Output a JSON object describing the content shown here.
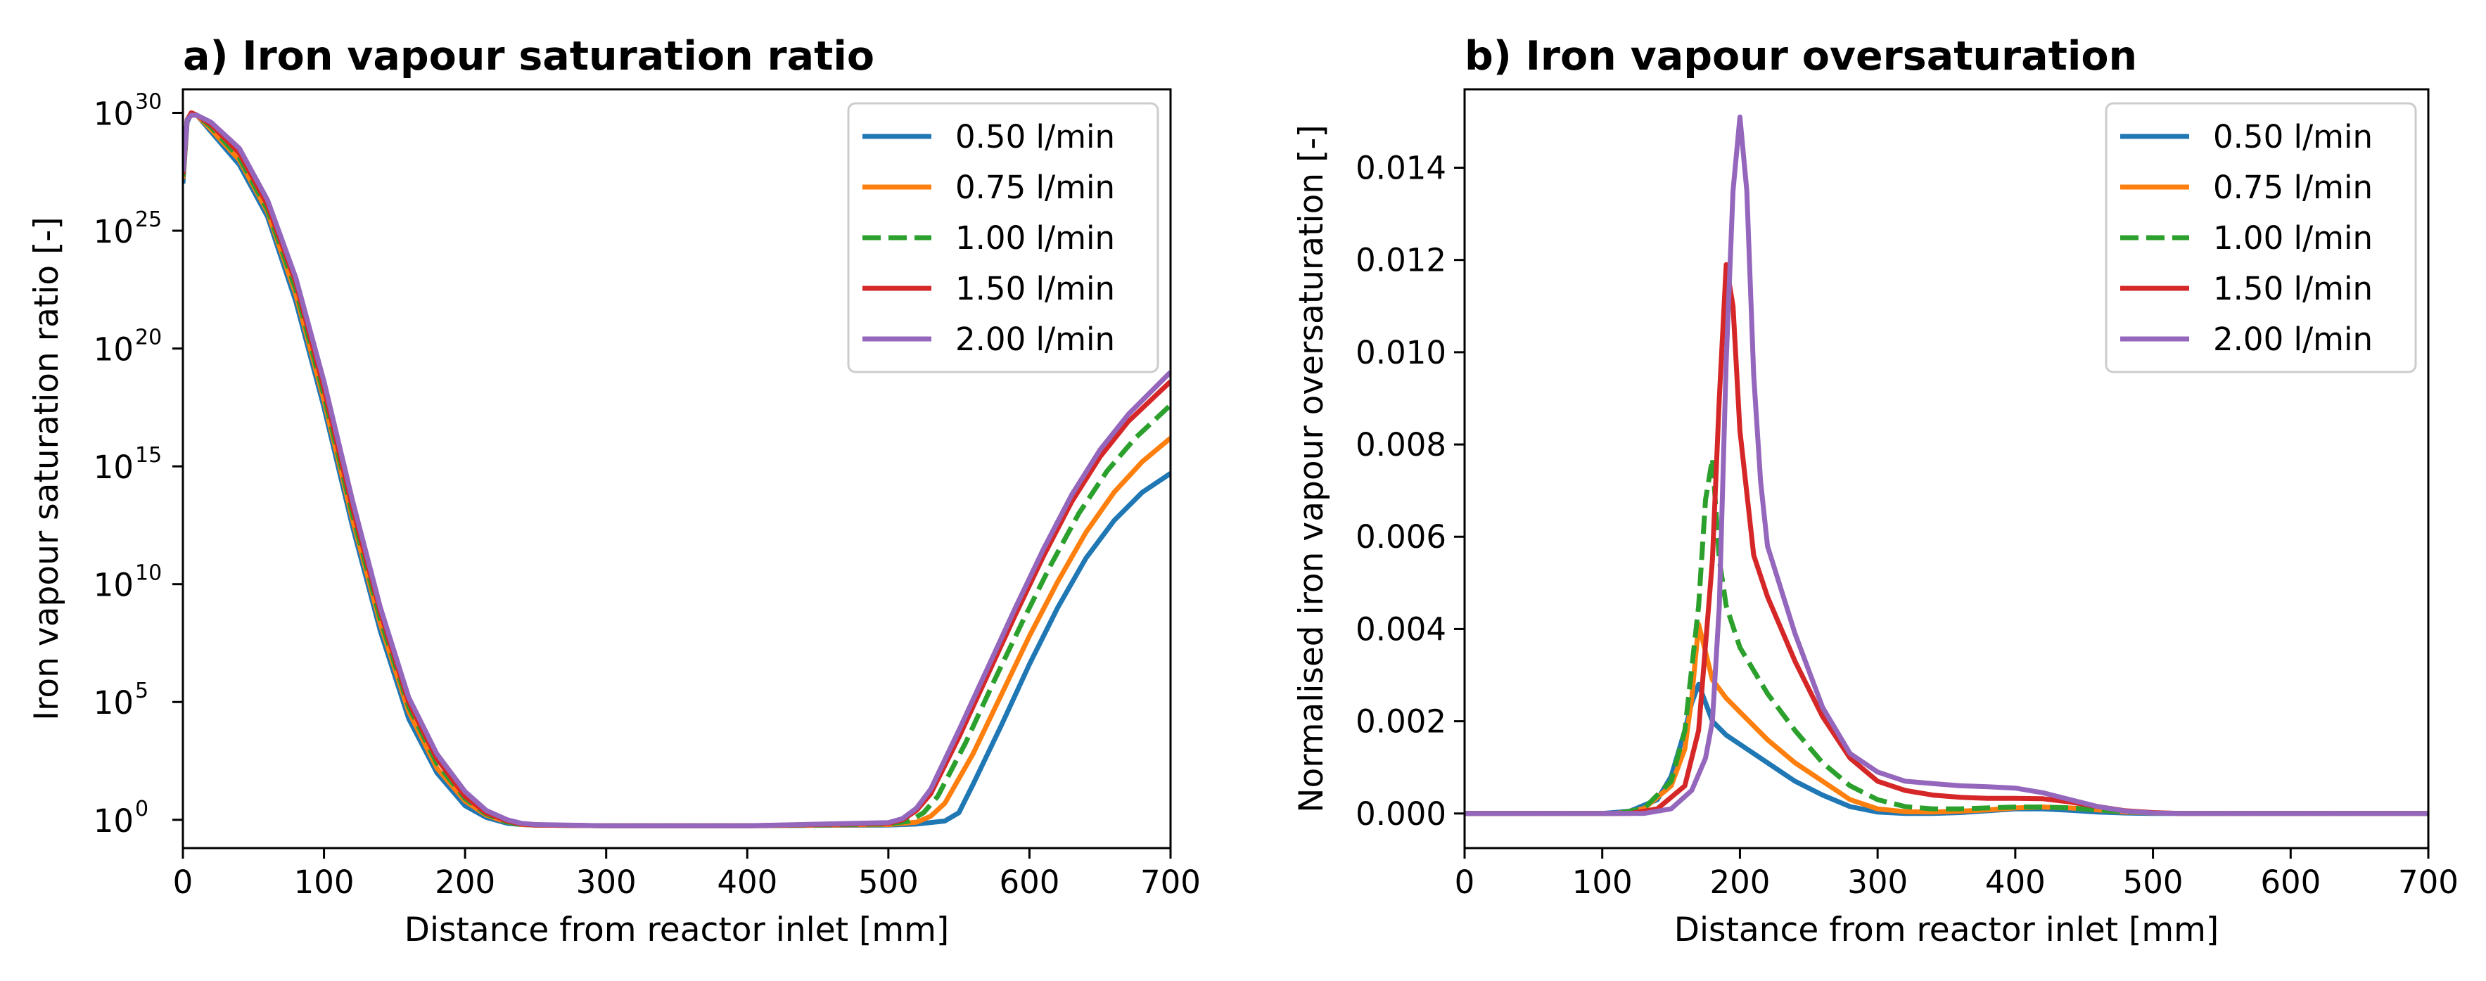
{
  "chart_data": [
    {
      "type": "line",
      "panel": "a",
      "title": "a) Iron vapour saturation ratio",
      "xlabel": "Distance from reactor inlet [mm]",
      "ylabel": "Iron vapour saturation ratio [-]",
      "yscale": "log",
      "xlim": [
        0,
        700
      ],
      "ylim_exp": [
        -1.2,
        31
      ],
      "x_ticks": [
        0,
        100,
        200,
        300,
        400,
        500,
        600,
        700
      ],
      "x_tick_labels": [
        "0",
        "100",
        "200",
        "300",
        "400",
        "500",
        "600",
        "700"
      ],
      "y_ticks_exp": [
        0,
        5,
        10,
        15,
        20,
        25,
        30
      ],
      "y_tick_base": "10",
      "y_tick_exponents": [
        "0",
        "5",
        "10",
        "15",
        "20",
        "25",
        "30"
      ],
      "legend_position": "top-right",
      "series": [
        {
          "name": "0.50 l/min",
          "color": "#1f77b4",
          "dash": "solid",
          "x": [
            0,
            3,
            6,
            10,
            20,
            40,
            60,
            80,
            100,
            120,
            140,
            160,
            180,
            200,
            215,
            230,
            240,
            250,
            300,
            400,
            500,
            520,
            540,
            550,
            560,
            580,
            600,
            620,
            640,
            660,
            680,
            700
          ],
          "y_exp": [
            27.0,
            29.6,
            30.0,
            29.9,
            29.2,
            27.8,
            25.6,
            22.0,
            17.5,
            12.5,
            8.0,
            4.3,
            2.0,
            0.6,
            0.1,
            -0.15,
            -0.2,
            -0.22,
            -0.25,
            -0.25,
            -0.22,
            -0.18,
            -0.05,
            0.3,
            1.5,
            4.0,
            6.6,
            9.0,
            11.1,
            12.7,
            13.9,
            14.7
          ]
        },
        {
          "name": "0.75 l/min",
          "color": "#ff7f0e",
          "dash": "solid",
          "x": [
            0,
            3,
            6,
            10,
            20,
            40,
            60,
            80,
            100,
            120,
            140,
            160,
            180,
            200,
            215,
            230,
            240,
            250,
            300,
            400,
            500,
            520,
            530,
            540,
            560,
            580,
            600,
            620,
            640,
            660,
            680,
            700
          ],
          "y_exp": [
            27.2,
            29.7,
            30.0,
            29.9,
            29.3,
            28.0,
            25.8,
            22.3,
            17.8,
            12.8,
            8.3,
            4.6,
            2.2,
            0.8,
            0.2,
            -0.1,
            -0.2,
            -0.22,
            -0.25,
            -0.25,
            -0.2,
            -0.1,
            0.15,
            0.7,
            2.8,
            5.3,
            7.8,
            10.1,
            12.2,
            13.9,
            15.2,
            16.2
          ]
        },
        {
          "name": "1.00 l/min",
          "color": "#2ca02c",
          "dash": "dashed",
          "x": [
            0,
            3,
            6,
            10,
            20,
            40,
            60,
            80,
            100,
            120,
            140,
            160,
            180,
            200,
            215,
            230,
            240,
            250,
            300,
            400,
            500,
            515,
            525,
            535,
            555,
            575,
            595,
            615,
            635,
            655,
            675,
            700
          ],
          "y_exp": [
            27.3,
            29.7,
            30.0,
            29.9,
            29.4,
            28.1,
            25.9,
            22.5,
            18.0,
            13.0,
            8.5,
            4.8,
            2.4,
            0.9,
            0.25,
            -0.1,
            -0.2,
            -0.22,
            -0.25,
            -0.25,
            -0.18,
            -0.05,
            0.3,
            1.0,
            3.3,
            5.9,
            8.4,
            10.8,
            13.0,
            14.8,
            16.2,
            17.6
          ]
        },
        {
          "name": "1.50 l/min",
          "color": "#d62728",
          "dash": "solid",
          "x": [
            0,
            3,
            6,
            10,
            20,
            40,
            60,
            80,
            100,
            120,
            140,
            160,
            180,
            200,
            215,
            230,
            240,
            250,
            300,
            400,
            500,
            510,
            520,
            530,
            550,
            570,
            590,
            610,
            630,
            650,
            670,
            700
          ],
          "y_exp": [
            27.4,
            29.7,
            30.0,
            29.9,
            29.5,
            28.3,
            26.1,
            22.8,
            18.3,
            13.3,
            8.8,
            5.0,
            2.6,
            1.0,
            0.3,
            -0.05,
            -0.18,
            -0.22,
            -0.25,
            -0.25,
            -0.15,
            0.0,
            0.4,
            1.1,
            3.5,
            6.1,
            8.7,
            11.2,
            13.5,
            15.4,
            16.9,
            18.6
          ]
        },
        {
          "name": "2.00 l/min",
          "color": "#9467bd",
          "dash": "solid",
          "x": [
            0,
            3,
            6,
            10,
            20,
            40,
            60,
            80,
            100,
            120,
            140,
            160,
            180,
            200,
            215,
            230,
            240,
            250,
            300,
            400,
            500,
            510,
            520,
            530,
            550,
            570,
            590,
            610,
            630,
            650,
            670,
            700
          ],
          "y_exp": [
            27.5,
            29.7,
            29.9,
            29.9,
            29.6,
            28.5,
            26.3,
            23.0,
            18.6,
            13.6,
            9.0,
            5.2,
            2.8,
            1.2,
            0.4,
            0.0,
            -0.15,
            -0.2,
            -0.25,
            -0.25,
            -0.12,
            0.05,
            0.5,
            1.3,
            3.8,
            6.4,
            9.0,
            11.5,
            13.8,
            15.7,
            17.2,
            19.0
          ]
        }
      ]
    },
    {
      "type": "line",
      "panel": "b",
      "title": "b) Iron vapour oversaturation",
      "xlabel": "Distance from reactor inlet [mm]",
      "ylabel": "Normalised iron vapour oversaturation [-]",
      "yscale": "linear",
      "xlim": [
        0,
        700
      ],
      "ylim": [
        -0.00075,
        0.0157
      ],
      "x_ticks": [
        0,
        100,
        200,
        300,
        400,
        500,
        600,
        700
      ],
      "x_tick_labels": [
        "0",
        "100",
        "200",
        "300",
        "400",
        "500",
        "600",
        "700"
      ],
      "y_ticks": [
        0.0,
        0.002,
        0.004,
        0.006,
        0.008,
        0.01,
        0.012,
        0.014
      ],
      "y_tick_labels": [
        "0.000",
        "0.002",
        "0.004",
        "0.006",
        "0.008",
        "0.010",
        "0.012",
        "0.014"
      ],
      "legend_position": "top-right",
      "series": [
        {
          "name": "0.50 l/min",
          "color": "#1f77b4",
          "dash": "solid",
          "x": [
            0,
            100,
            120,
            140,
            150,
            160,
            165,
            170,
            175,
            180,
            190,
            200,
            220,
            240,
            260,
            280,
            300,
            320,
            340,
            360,
            380,
            400,
            420,
            440,
            460,
            480,
            500,
            520,
            700
          ],
          "y": [
            0,
            0,
            5e-05,
            0.0003,
            0.0008,
            0.0018,
            0.0024,
            0.0028,
            0.0024,
            0.002,
            0.0017,
            0.0015,
            0.0011,
            0.0007,
            0.0004,
            0.00015,
            3e-05,
            0.0,
            0.0,
            2e-05,
            6e-05,
            0.0001,
            0.0001,
            7e-05,
            3e-05,
            1e-05,
            0,
            0,
            0
          ]
        },
        {
          "name": "0.75 l/min",
          "color": "#ff7f0e",
          "dash": "solid",
          "x": [
            0,
            110,
            130,
            150,
            160,
            165,
            170,
            175,
            180,
            190,
            200,
            220,
            240,
            260,
            280,
            300,
            320,
            340,
            360,
            380,
            400,
            420,
            440,
            460,
            480,
            500,
            520,
            700
          ],
          "y": [
            0,
            0,
            0.0001,
            0.0006,
            0.0014,
            0.0025,
            0.0041,
            0.0035,
            0.0029,
            0.0025,
            0.0022,
            0.0016,
            0.0011,
            0.0007,
            0.0003,
            0.0001,
            4e-05,
            3e-05,
            5e-05,
            8e-05,
            0.00012,
            0.00014,
            0.00012,
            8e-05,
            3e-05,
            1e-05,
            0,
            0
          ]
        },
        {
          "name": "1.00 l/min",
          "color": "#2ca02c",
          "dash": "dashed",
          "x": [
            0,
            110,
            130,
            150,
            160,
            170,
            175,
            180,
            185,
            190,
            200,
            220,
            240,
            260,
            280,
            300,
            320,
            340,
            360,
            380,
            400,
            420,
            440,
            460,
            480,
            500,
            520,
            700
          ],
          "y": [
            0,
            0,
            0.0001,
            0.0007,
            0.0018,
            0.0045,
            0.0068,
            0.0077,
            0.0055,
            0.0045,
            0.0036,
            0.0026,
            0.0018,
            0.0011,
            0.0006,
            0.0003,
            0.00015,
            0.0001,
            0.0001,
            0.00012,
            0.00014,
            0.00014,
            0.00012,
            8e-05,
            4e-05,
            1e-05,
            0,
            0
          ]
        },
        {
          "name": "1.50 l/min",
          "color": "#d62728",
          "dash": "solid",
          "x": [
            0,
            120,
            140,
            160,
            170,
            180,
            185,
            190,
            195,
            200,
            210,
            220,
            240,
            260,
            280,
            300,
            320,
            340,
            360,
            380,
            400,
            420,
            440,
            460,
            480,
            500,
            520,
            700
          ],
          "y": [
            0,
            0,
            0.0001,
            0.0006,
            0.0018,
            0.0055,
            0.009,
            0.0119,
            0.011,
            0.0083,
            0.0056,
            0.0047,
            0.0033,
            0.0021,
            0.0012,
            0.0007,
            0.0005,
            0.0004,
            0.00035,
            0.00033,
            0.00033,
            0.00032,
            0.00025,
            0.00015,
            6e-05,
            2e-05,
            0,
            0
          ]
        },
        {
          "name": "2.00 l/min",
          "color": "#9467bd",
          "dash": "solid",
          "x": [
            0,
            130,
            150,
            165,
            175,
            180,
            185,
            190,
            195,
            200,
            205,
            210,
            215,
            220,
            240,
            260,
            280,
            300,
            320,
            340,
            360,
            380,
            400,
            420,
            440,
            460,
            480,
            500,
            520,
            700
          ],
          "y": [
            0,
            0,
            0.0001,
            0.0005,
            0.0012,
            0.002,
            0.0045,
            0.0098,
            0.0135,
            0.0151,
            0.0135,
            0.0095,
            0.0072,
            0.0058,
            0.0039,
            0.0023,
            0.0013,
            0.0009,
            0.0007,
            0.00065,
            0.0006,
            0.00058,
            0.00055,
            0.00045,
            0.0003,
            0.00015,
            5e-05,
            1e-05,
            0,
            0
          ]
        }
      ]
    }
  ]
}
